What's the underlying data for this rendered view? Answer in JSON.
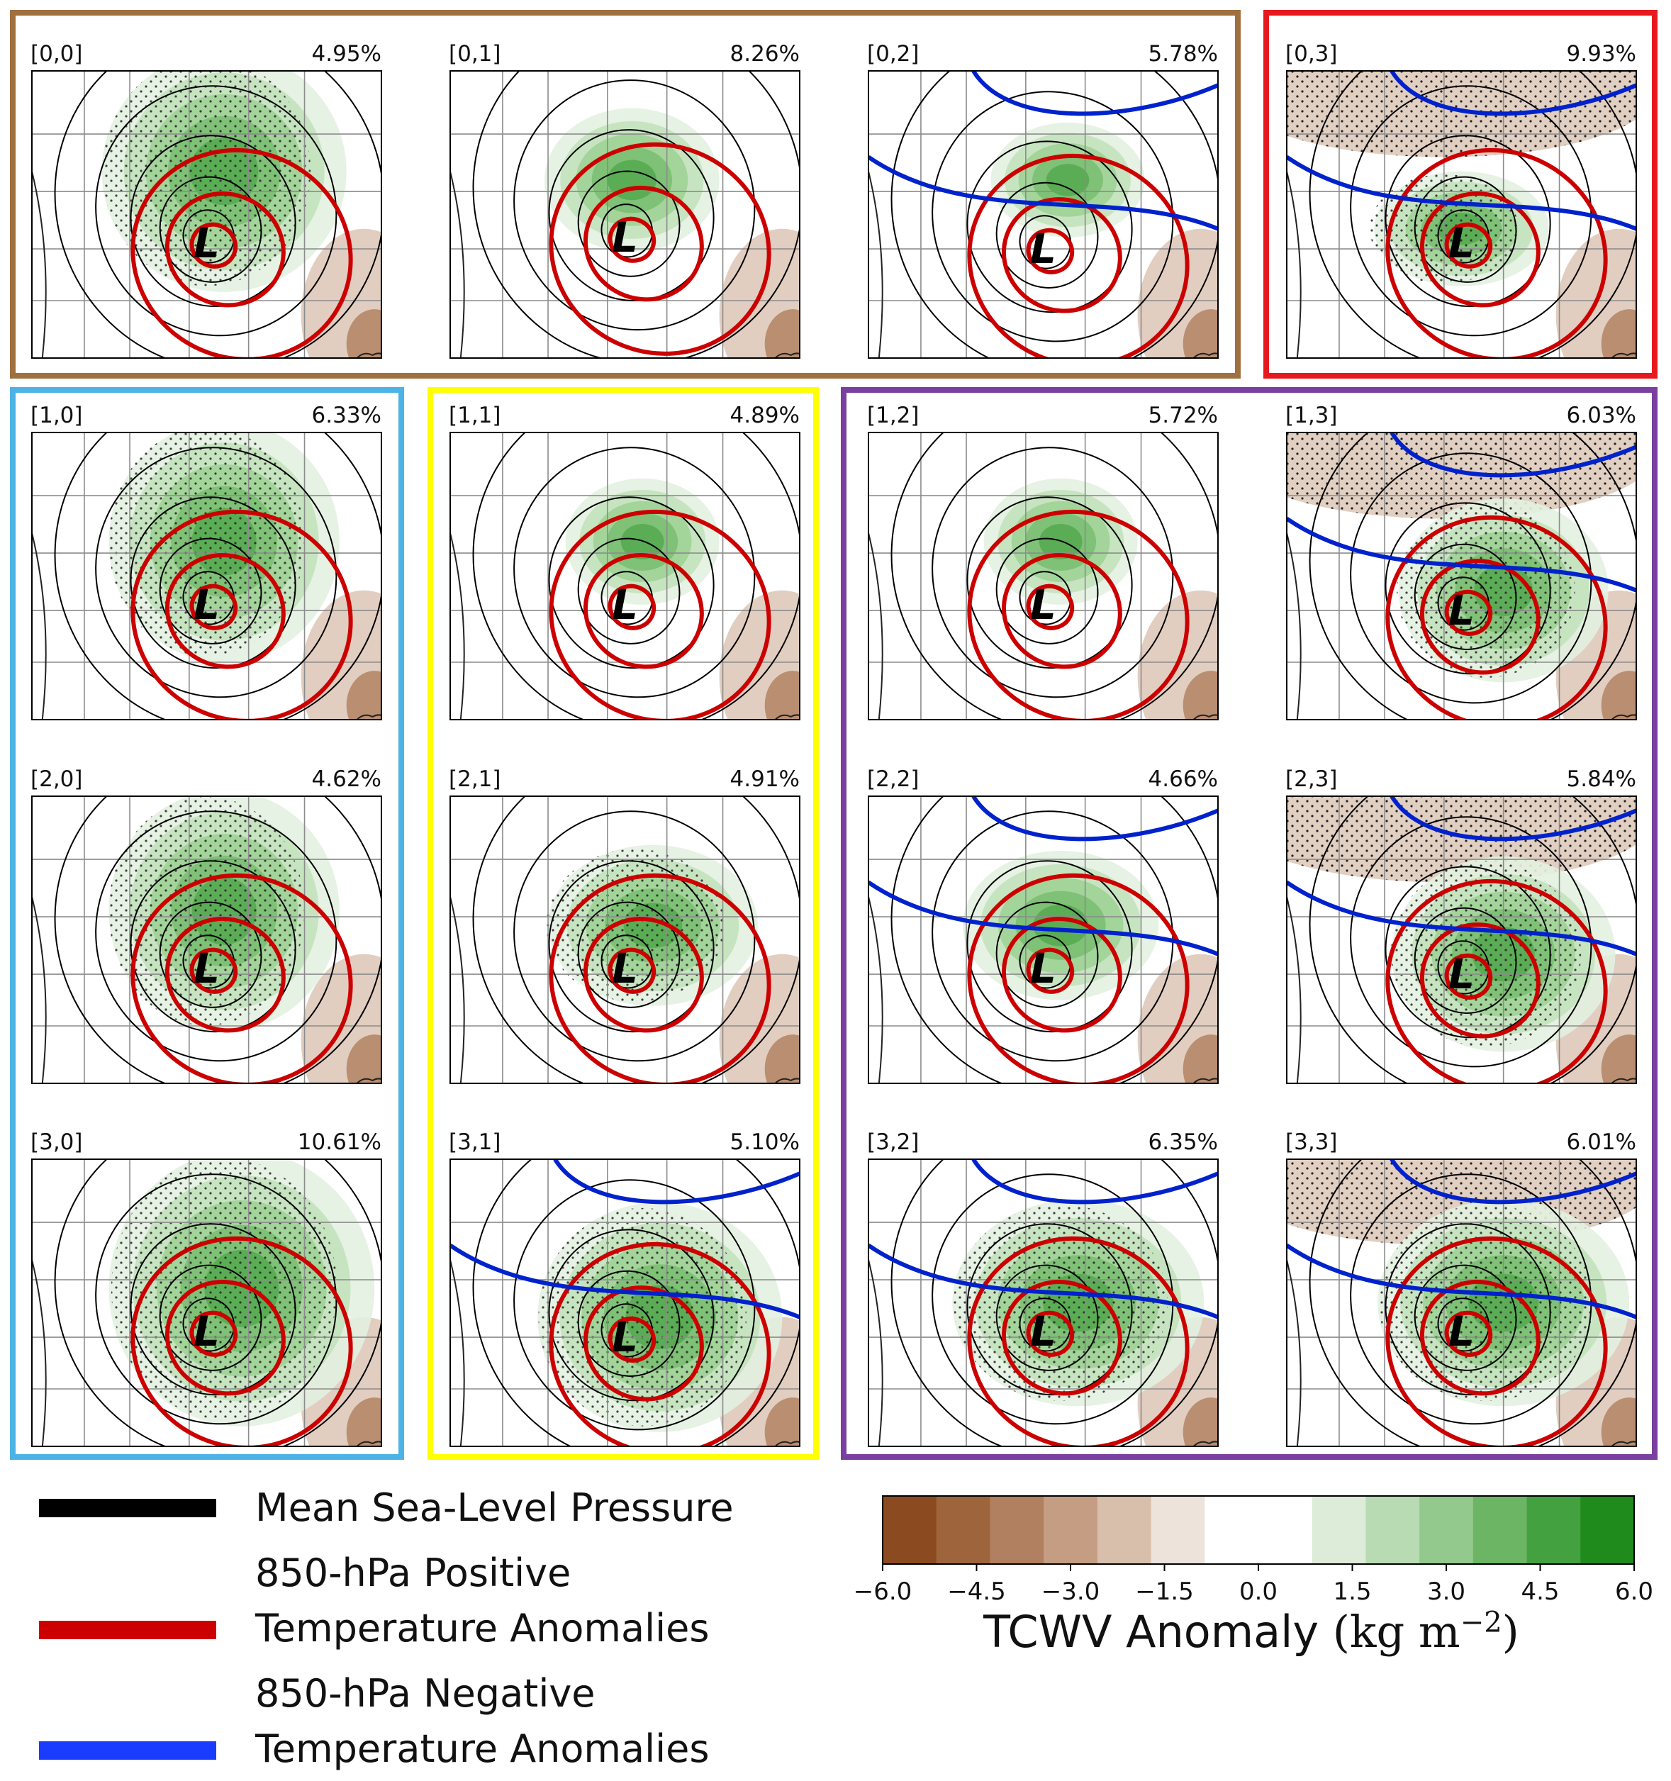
{
  "panels": [
    {
      "id": "[0,0]",
      "pct": "4.95%"
    },
    {
      "id": "[0,1]",
      "pct": "8.26%"
    },
    {
      "id": "[0,2]",
      "pct": "5.78%"
    },
    {
      "id": "[0,3]",
      "pct": "9.93%"
    },
    {
      "id": "[1,0]",
      "pct": "6.33%"
    },
    {
      "id": "[1,1]",
      "pct": "4.89%"
    },
    {
      "id": "[1,2]",
      "pct": "5.72%"
    },
    {
      "id": "[1,3]",
      "pct": "6.03%"
    },
    {
      "id": "[2,0]",
      "pct": "4.62%"
    },
    {
      "id": "[2,1]",
      "pct": "4.91%"
    },
    {
      "id": "[2,2]",
      "pct": "4.66%"
    },
    {
      "id": "[2,3]",
      "pct": "5.84%"
    },
    {
      "id": "[3,0]",
      "pct": "10.61%"
    },
    {
      "id": "[3,1]",
      "pct": "5.10%"
    },
    {
      "id": "[3,2]",
      "pct": "6.35%"
    },
    {
      "id": "[3,3]",
      "pct": "6.01%"
    }
  ],
  "low_marker": "L",
  "group_colors": {
    "brown": "#a0703e",
    "red": "#e8191e",
    "cyan": "#4db3e6",
    "yellow": "#ffff00",
    "purple": "#7a3fa0"
  },
  "legend": {
    "mslp": {
      "label": "Mean Sea-Level Pressure",
      "color": "#000000"
    },
    "pos": {
      "label_line1": "850-hPa Positive",
      "label_line2": "Temperature Anomalies",
      "color": "#cc0000"
    },
    "neg": {
      "label_line1": "850-hPa Negative",
      "label_line2": "Temperature Anomalies",
      "color": "#0033ff"
    }
  },
  "colorbar": {
    "title": "TCWV Anomaly ",
    "unit": "(kg m",
    "exp": "−2",
    "close": ")",
    "ticks": [
      "−6.0",
      "−4.5",
      "−3.0",
      "−1.5",
      "0.0",
      "1.5",
      "3.0",
      "4.5",
      "6.0"
    ],
    "colors": [
      "#8b4a1f",
      "#9e653d",
      "#b18060",
      "#c49d82",
      "#d8bfac",
      "#ede3db",
      "#ffffff",
      "#ffffff",
      "#dcecd9",
      "#b9dbb4",
      "#93c98c",
      "#6bb565",
      "#43a13f",
      "#1f8b1c"
    ]
  }
}
